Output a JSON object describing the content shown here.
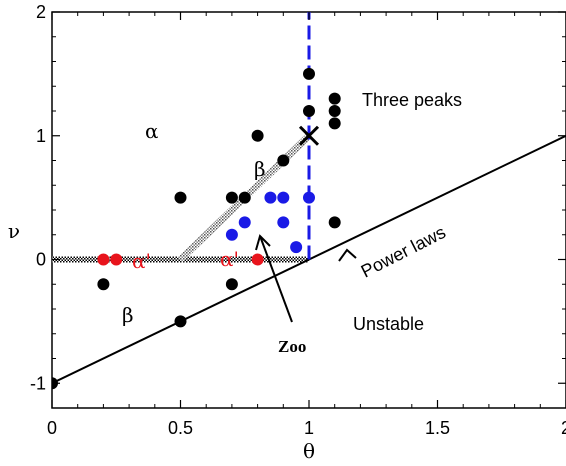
{
  "chart_data": {
    "type": "scatter",
    "xlabel": "θ",
    "ylabel": "ν",
    "xlim": [
      0,
      2
    ],
    "ylim": [
      -1.2,
      2
    ],
    "x_ticks": [
      "0",
      "0.5",
      "1",
      "1.5",
      "2"
    ],
    "y_ticks": [
      "-1",
      "0",
      "1",
      "2"
    ],
    "grid": false,
    "series": [
      {
        "color": "#000000",
        "points": [
          {
            "x": 0,
            "y": -1
          },
          {
            "x": 0.2,
            "y": -0.2
          },
          {
            "x": 0.5,
            "y": 0.5
          },
          {
            "x": 0.5,
            "y": -0.5
          },
          {
            "x": 0.7,
            "y": 0.5
          },
          {
            "x": 0.7,
            "y": -0.2
          },
          {
            "x": 0.75,
            "y": 0.5
          },
          {
            "x": 0.8,
            "y": 1.0
          },
          {
            "x": 0.9,
            "y": 0.8
          },
          {
            "x": 1.0,
            "y": 1.5
          },
          {
            "x": 1.0,
            "y": 1.2
          },
          {
            "x": 1.1,
            "y": 1.3
          },
          {
            "x": 1.1,
            "y": 1.2
          },
          {
            "x": 1.1,
            "y": 1.1
          },
          {
            "x": 1.1,
            "y": 0.3
          }
        ]
      },
      {
        "color": "#1a1ae6",
        "points": [
          {
            "x": 0.7,
            "y": 0.2
          },
          {
            "x": 0.75,
            "y": 0.3
          },
          {
            "x": 0.85,
            "y": 0.5
          },
          {
            "x": 0.9,
            "y": 0.5
          },
          {
            "x": 0.9,
            "y": 0.3
          },
          {
            "x": 0.95,
            "y": 0.1
          },
          {
            "x": 1.0,
            "y": 0.5
          }
        ]
      },
      {
        "color": "#e8141c",
        "points": [
          {
            "x": 0.2,
            "y": 0
          },
          {
            "x": 0.25,
            "y": 0
          },
          {
            "x": 0.8,
            "y": 0
          }
        ]
      }
    ],
    "lines": {
      "power_law_line": {
        "x": [
          0,
          2
        ],
        "y": [
          -1,
          1
        ],
        "color": "#000000"
      },
      "vertical_dashed": {
        "x": [
          1,
          1
        ],
        "y": [
          0,
          2
        ],
        "color": "#1a1ae6"
      },
      "hatched_horizontal": {
        "x": [
          0,
          1
        ],
        "y": [
          0,
          0
        ]
      },
      "hatched_diagonal": {
        "x": [
          0.5,
          1.0
        ],
        "y": [
          0,
          1.0
        ]
      }
    },
    "cross_marker": {
      "x": 1.0,
      "y": 1.0
    },
    "annotations": {
      "three_peaks": "Three peaks",
      "alpha_upper": "α",
      "beta_upper": "β",
      "alpha_prime_left": "α'",
      "alpha_prime_right": "α'",
      "beta_lower": "β",
      "power_laws": "Power laws",
      "unstable": "Unstable",
      "zoo": "Zoo"
    }
  }
}
